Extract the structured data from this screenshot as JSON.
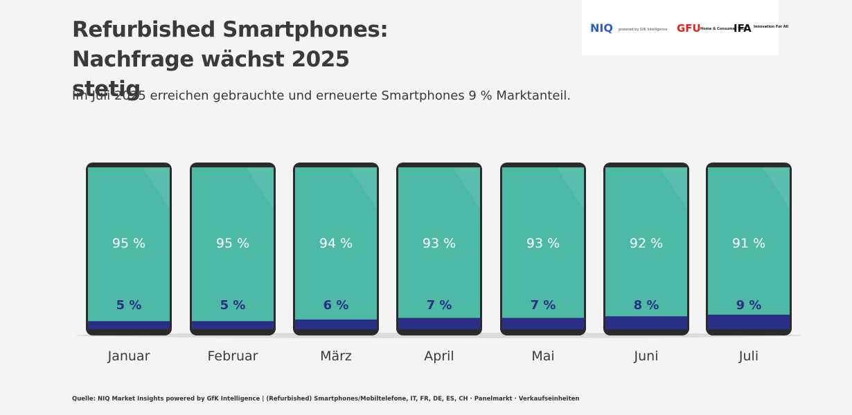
{
  "chart_data": {
    "type": "stacked-phone",
    "title": "Refurbished Smartphones: Nachfrage wächst 2025 stetig",
    "subtitle": "Im Juli 2025 erreichen gebrauchte und erneuerte Smartphones 9 % Marktanteil.",
    "source": "Quelle: NIQ Market Insights powered by GfK Intelligence | (Refurbished) Smartphones/Mobiltelefone, IT, FR, DE, ES, CH · Panelmarkt · Verkaufseinheiten",
    "categories": [
      "Januar",
      "Februar",
      "März",
      "April",
      "Mai",
      "Juni",
      "Juli"
    ],
    "series": [
      {
        "color": "#2a2f86",
        "values": [
          5,
          5,
          6,
          7,
          7,
          8,
          9
        ],
        "value_labels": [
          "5 %",
          "5 %",
          "6 %",
          "7 %",
          "7 %",
          "8 %",
          "9 %"
        ]
      },
      {
        "color": "#4dbaa6",
        "values": [
          95,
          95,
          94,
          93,
          93,
          92,
          91
        ],
        "value_labels": [
          "95 %",
          "95 %",
          "94 %",
          "93 %",
          "93 %",
          "92 %",
          "91 %"
        ]
      }
    ]
  },
  "logos": [
    "NIQ",
    "powered by GfK Intelligence",
    "GFU",
    "Home & Consumer Tech",
    "IFA",
    "Innovation For All"
  ]
}
